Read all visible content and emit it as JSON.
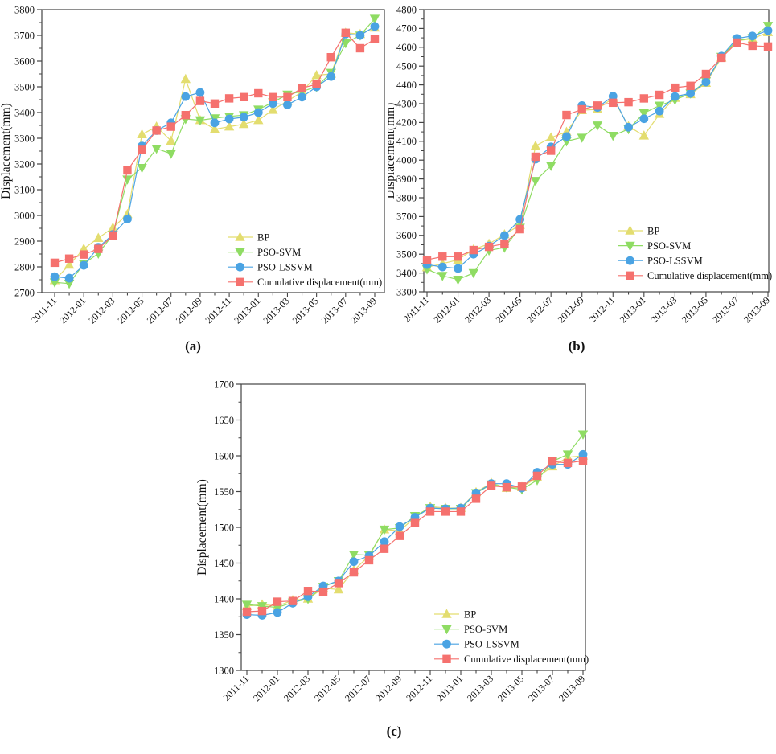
{
  "figure": {
    "background": "#ffffff",
    "axis_color": "#444444",
    "text_color": "#111111"
  },
  "chart_data": [
    {
      "id": "a",
      "caption": "(a)",
      "type": "line",
      "ylabel": "Displacement(mm)",
      "ylim": [
        2700,
        3800
      ],
      "ytick_step": 100,
      "ytick_minor_step": 50,
      "ytick_labels": [
        "2700",
        "2800",
        "2900",
        "3000",
        "3100",
        "3200",
        "3300",
        "3400",
        "3500",
        "3600",
        "3700",
        "3800"
      ],
      "x_tick_labels": [
        "2011-11",
        "2012-01",
        "2012-03",
        "2012-05",
        "2012-07",
        "2012-09",
        "2012-11",
        "2013-01",
        "2013-03",
        "2013-05",
        "2013-07",
        "2013-09"
      ],
      "categories": [
        "2011-11",
        "2011-12",
        "2012-01",
        "2012-02",
        "2012-03",
        "2012-04",
        "2012-05",
        "2012-06",
        "2012-07",
        "2012-08",
        "2012-09",
        "2012-10",
        "2012-11",
        "2012-12",
        "2013-01",
        "2013-02",
        "2013-03",
        "2013-04",
        "2013-05",
        "2013-06",
        "2013-07",
        "2013-08",
        "2013-09"
      ],
      "grid": false,
      "legend_position": "lower-right",
      "series": [
        {
          "name": "BP",
          "marker": "triangle-up",
          "color": "#e3dd6f",
          "values": [
            2748,
            2808,
            2870,
            2912,
            2952,
            3005,
            3315,
            3345,
            3290,
            3530,
            3370,
            3335,
            3345,
            3355,
            3370,
            3410,
            3445,
            3480,
            3545,
            3550,
            3710,
            3705,
            3730
          ]
        },
        {
          "name": "PSO-SVM",
          "marker": "triangle-down",
          "color": "#8fdc63",
          "values": [
            2740,
            2735,
            2812,
            2852,
            2925,
            3140,
            3185,
            3260,
            3240,
            3375,
            3370,
            3378,
            3385,
            3390,
            3412,
            3440,
            3470,
            3482,
            3500,
            3555,
            3670,
            3700,
            3765
          ]
        },
        {
          "name": "PSO-LSSVM",
          "marker": "circle",
          "color": "#4aa3e3",
          "values": [
            2762,
            2756,
            2806,
            2876,
            2926,
            2986,
            3270,
            3330,
            3360,
            3462,
            3478,
            3360,
            3375,
            3382,
            3400,
            3435,
            3430,
            3460,
            3500,
            3540,
            3705,
            3700,
            3735
          ]
        },
        {
          "name": "Cumulative displacement(mm)",
          "marker": "square",
          "color": "#f5716e",
          "values": [
            2816,
            2832,
            2848,
            2870,
            2922,
            3175,
            3255,
            3330,
            3345,
            3390,
            3445,
            3435,
            3455,
            3460,
            3475,
            3460,
            3460,
            3495,
            3510,
            3615,
            3710,
            3650,
            3685
          ]
        }
      ]
    },
    {
      "id": "b",
      "caption": "(b)",
      "type": "line",
      "ylabel": "Displacement(mm)",
      "ylim": [
        3300,
        4800
      ],
      "ytick_step": 100,
      "ytick_minor_step": 50,
      "ytick_labels": [
        "3300",
        "3400",
        "3500",
        "3600",
        "3700",
        "3800",
        "3900",
        "4000",
        "4100",
        "4200",
        "4300",
        "4400",
        "4500",
        "4600",
        "4700",
        "4800"
      ],
      "x_tick_labels": [
        "2011-11",
        "2012-01",
        "2012-03",
        "2012-05",
        "2012-07",
        "2012-09",
        "2012-11",
        "2013-01",
        "2013-03",
        "2013-05",
        "2013-07",
        "2013-09"
      ],
      "categories": [
        "2011-11",
        "2011-12",
        "2012-01",
        "2012-02",
        "2012-03",
        "2012-04",
        "2012-05",
        "2012-06",
        "2012-07",
        "2012-08",
        "2012-09",
        "2012-10",
        "2012-11",
        "2012-12",
        "2013-01",
        "2013-02",
        "2013-03",
        "2013-04",
        "2013-05",
        "2013-06",
        "2013-07",
        "2013-08",
        "2013-09"
      ],
      "grid": false,
      "legend_position": "lower-right",
      "series": [
        {
          "name": "BP",
          "marker": "triangle-up",
          "color": "#e3dd6f",
          "values": [
            3430,
            3450,
            3470,
            3525,
            3555,
            3605,
            3655,
            4075,
            4120,
            4150,
            4265,
            4270,
            4330,
            4180,
            4130,
            4245,
            4330,
            4350,
            4410,
            4545,
            4635,
            4645,
            4680
          ]
        },
        {
          "name": "PSO-SVM",
          "marker": "triangle-down",
          "color": "#8fdc63",
          "values": [
            3420,
            3385,
            3365,
            3400,
            3520,
            3535,
            3641,
            3890,
            3970,
            4100,
            4120,
            4185,
            4130,
            4165,
            4250,
            4290,
            4320,
            4355,
            4420,
            4550,
            4635,
            4650,
            4715
          ]
        },
        {
          "name": "PSO-LSSVM",
          "marker": "circle",
          "color": "#4aa3e3",
          "values": [
            3445,
            3432,
            3424,
            3500,
            3543,
            3599,
            3685,
            4005,
            4070,
            4125,
            4290,
            4280,
            4340,
            4175,
            4220,
            4261,
            4338,
            4355,
            4415,
            4553,
            4647,
            4660,
            4689
          ]
        },
        {
          "name": "Cumulative displacement(mm)",
          "marker": "square",
          "color": "#f5716e",
          "values": [
            3470,
            3487,
            3487,
            3522,
            3539,
            3556,
            3633,
            4018,
            4050,
            4240,
            4270,
            4290,
            4305,
            4308,
            4328,
            4347,
            4385,
            4395,
            4458,
            4544,
            4625,
            4608,
            4604
          ]
        }
      ]
    },
    {
      "id": "c",
      "caption": "(c)",
      "type": "line",
      "ylabel": "Displacement(mm)",
      "ylim": [
        1300,
        1700
      ],
      "ytick_step": 50,
      "ytick_minor_step": 25,
      "ytick_labels": [
        "1300",
        "1350",
        "1400",
        "1450",
        "1500",
        "1550",
        "1600",
        "1650",
        "1700"
      ],
      "x_tick_labels": [
        "2011-11",
        "2012-01",
        "2012-03",
        "2012-05",
        "2012-07",
        "2012-09",
        "2012-11",
        "2013-01",
        "2013-03",
        "2013-05",
        "2013-07",
        "2013-09"
      ],
      "categories": [
        "2011-11",
        "2011-12",
        "2012-01",
        "2012-02",
        "2012-03",
        "2012-04",
        "2012-05",
        "2012-06",
        "2012-07",
        "2012-08",
        "2012-09",
        "2012-10",
        "2012-11",
        "2012-12",
        "2013-01",
        "2013-02",
        "2013-03",
        "2013-04",
        "2013-05",
        "2013-06",
        "2013-07",
        "2013-08",
        "2013-09"
      ],
      "grid": false,
      "legend_position": "lower-right",
      "series": [
        {
          "name": "BP",
          "marker": "triangle-up",
          "color": "#e3dd6f",
          "values": [
            1390,
            1392,
            1390,
            1398,
            1400,
            1415,
            1413,
            1440,
            1460,
            1497,
            1495,
            1514,
            1529,
            1527,
            1527,
            1549,
            1562,
            1555,
            1556,
            1570,
            1585,
            1598,
            1600
          ]
        },
        {
          "name": "PSO-SVM",
          "marker": "triangle-down",
          "color": "#8fdc63",
          "values": [
            1392,
            1390,
            1388,
            1395,
            1400,
            1417,
            1425,
            1462,
            1461,
            1497,
            1499,
            1516,
            1527,
            1526,
            1526,
            1548,
            1560,
            1556,
            1553,
            1566,
            1592,
            1602,
            1630
          ]
        },
        {
          "name": "PSO-LSSVM",
          "marker": "circle",
          "color": "#4aa3e3",
          "values": [
            1378,
            1377,
            1381,
            1394,
            1403,
            1418,
            1425,
            1452,
            1460,
            1480,
            1501,
            1514,
            1527,
            1526,
            1527,
            1548,
            1561,
            1561,
            1555,
            1577,
            1588,
            1588,
            1602
          ]
        },
        {
          "name": "Cumulative displacement(mm)",
          "marker": "square",
          "color": "#f5716e",
          "values": [
            1382,
            1383,
            1396,
            1397,
            1411,
            1410,
            1422,
            1437,
            1454,
            1470,
            1488,
            1506,
            1522,
            1522,
            1522,
            1540,
            1558,
            1556,
            1557,
            1572,
            1592,
            1590,
            1593
          ]
        }
      ]
    }
  ]
}
